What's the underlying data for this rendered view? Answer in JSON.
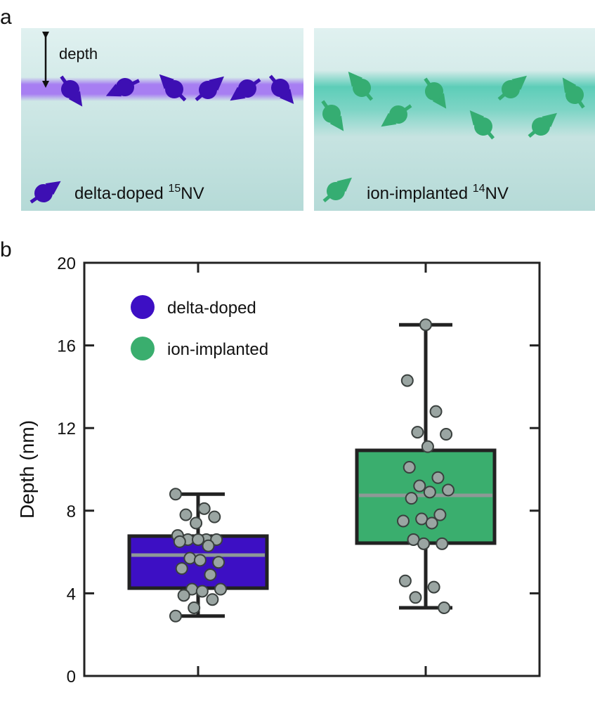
{
  "panel_a": {
    "label": "a",
    "depth_label": "depth",
    "left_legend": {
      "text": "delta-doped ",
      "sup": "15",
      "suffix": "NV"
    },
    "right_legend": {
      "text": "ion-implanted ",
      "sup": "14",
      "suffix": "NV"
    }
  },
  "panel_b": {
    "label": "b"
  },
  "chart_data": {
    "type": "box",
    "ylabel": "Depth (nm)",
    "ylim": [
      0,
      20
    ],
    "yticks": [
      0,
      4,
      8,
      12,
      16,
      20
    ],
    "legend": "upper left",
    "series": [
      {
        "name": "delta-doped",
        "color": "#3d0fc4",
        "whislo": 2.9,
        "q1": 4.25,
        "med": 5.85,
        "q3": 6.77,
        "whishi": 8.8,
        "points": [
          8.8,
          8.1,
          7.8,
          7.7,
          7.4,
          6.8,
          6.6,
          6.6,
          6.6,
          6.6,
          6.5,
          6.3,
          5.7,
          5.5,
          5.6,
          5.2,
          4.9,
          4.2,
          4.2,
          4.1,
          3.9,
          3.7,
          3.3,
          2.9
        ]
      },
      {
        "name": "ion-implanted",
        "color": "#3aae6e",
        "whislo": 3.3,
        "q1": 6.43,
        "med": 8.74,
        "q3": 10.92,
        "whishi": 17.0,
        "points": [
          17.0,
          14.3,
          12.8,
          11.8,
          11.7,
          11.1,
          10.1,
          9.6,
          9.2,
          9.0,
          8.9,
          8.6,
          7.8,
          7.6,
          7.5,
          7.4,
          6.6,
          6.4,
          6.4,
          4.6,
          4.3,
          3.8,
          3.3
        ]
      }
    ]
  }
}
